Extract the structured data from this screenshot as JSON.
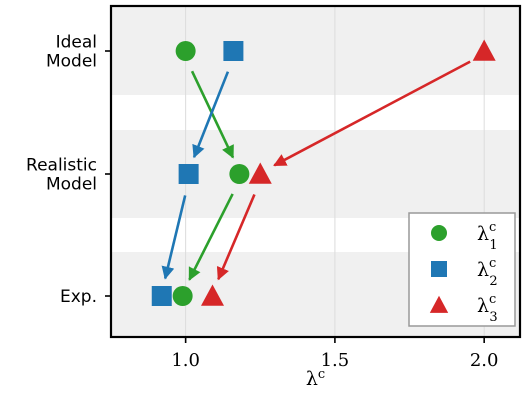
{
  "chart_data": {
    "type": "scatter",
    "xlabel": "λᶜ",
    "xlim": [
      0.75,
      2.12
    ],
    "x_ticks": [
      "1.0",
      "1.5",
      "2.0"
    ],
    "x_tick_values": [
      1.0,
      1.5,
      2.0
    ],
    "categories": [
      "Ideal Model",
      "Realistic Model",
      "Exp."
    ],
    "category_lines": [
      [
        "Ideal",
        "Model"
      ],
      [
        "Realistic",
        "Model"
      ],
      [
        "Exp."
      ]
    ],
    "grid": true,
    "legend_position": "bottom-right",
    "series": [
      {
        "name": "λ₁ᶜ",
        "sub": "1",
        "marker": "circle",
        "color": "#2ca02c",
        "values": {
          "Ideal Model": 1.0,
          "Realistic Model": 1.18,
          "Exp.": 0.99
        }
      },
      {
        "name": "λ₂ᶜ",
        "sub": "2",
        "marker": "square",
        "color": "#1f77b4",
        "values": {
          "Ideal Model": 1.16,
          "Realistic Model": 1.01,
          "Exp.": 0.92
        }
      },
      {
        "name": "λ₃ᶜ",
        "sub": "3",
        "marker": "triangle",
        "color": "#d62728",
        "values": {
          "Ideal Model": 2.0,
          "Realistic Model": 1.25,
          "Exp.": 1.09
        }
      }
    ]
  }
}
